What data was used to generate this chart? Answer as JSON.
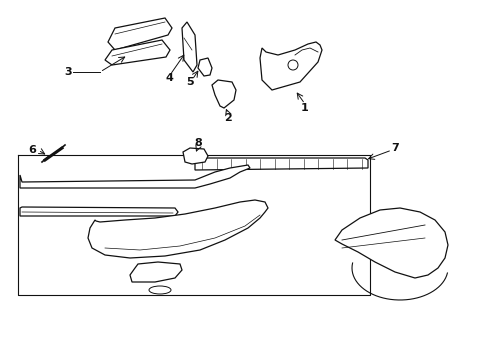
{
  "bg_color": "#ffffff",
  "line_color": "#111111",
  "label_color": "#000000",
  "lw": 0.9,
  "label_fs": 8,
  "label_bold": true
}
